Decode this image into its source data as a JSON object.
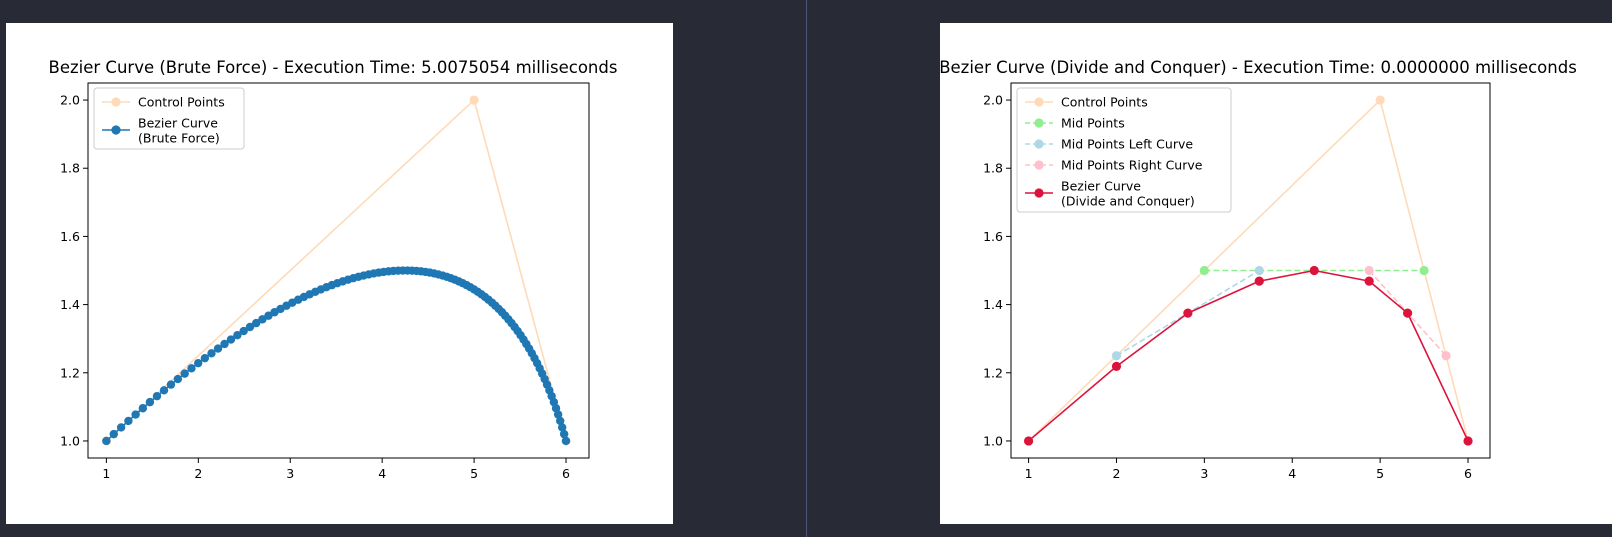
{
  "chart_data": [
    {
      "type": "line",
      "title": "Bezier Curve (Brute Force) - Execution Time: 5.0075054 milliseconds",
      "xlabel": "",
      "ylabel": "",
      "xlim": [
        0.8,
        6.25
      ],
      "ylim": [
        0.95,
        2.05
      ],
      "xticks": [
        "1",
        "2",
        "3",
        "4",
        "5",
        "6"
      ],
      "yticks": [
        "1.0",
        "1.2",
        "1.4",
        "1.6",
        "1.8",
        "2.0"
      ],
      "legend_position": "top-left",
      "series": [
        {
          "name": "Control Points",
          "color": "#ffdab9",
          "marker": "circle",
          "line": "solid",
          "x": [
            1,
            5,
            6
          ],
          "y": [
            1.0,
            2.0,
            1.0
          ]
        },
        {
          "name": "Bezier Curve\n(Brute Force)",
          "color": "#1f77b4",
          "marker": "circle",
          "line": "solid",
          "formula": "quadratic bezier of control points, 100 samples",
          "samples": 100,
          "control_x": [
            1,
            5,
            6
          ],
          "control_y": [
            1.0,
            2.0,
            1.0
          ]
        }
      ]
    },
    {
      "type": "line",
      "title": "Bezier Curve (Divide and Conquer) - Execution Time: 0.0000000 milliseconds",
      "xlabel": "",
      "ylabel": "",
      "xlim": [
        0.8,
        6.25
      ],
      "ylim": [
        0.95,
        2.05
      ],
      "xticks": [
        "1",
        "2",
        "3",
        "4",
        "5",
        "6"
      ],
      "yticks": [
        "1.0",
        "1.2",
        "1.4",
        "1.6",
        "1.8",
        "2.0"
      ],
      "legend_position": "top-left",
      "series": [
        {
          "name": "Control Points",
          "color": "#ffdab9",
          "marker": "circle",
          "line": "solid",
          "x": [
            1,
            5,
            6
          ],
          "y": [
            1.0,
            2.0,
            1.0
          ]
        },
        {
          "name": "Mid Points",
          "color": "#90ee90",
          "marker": "circle",
          "line": "dashed",
          "x": [
            3,
            5.5
          ],
          "y": [
            1.5,
            1.5
          ]
        },
        {
          "name": "Mid Points Left Curve",
          "color": "#add8e6",
          "marker": "circle",
          "line": "dashed",
          "x": [
            2,
            3.625
          ],
          "y": [
            1.25,
            1.5
          ]
        },
        {
          "name": "Mid Points Right Curve",
          "color": "#ffc0cb",
          "marker": "circle",
          "line": "dashed",
          "x": [
            4.875,
            5.75
          ],
          "y": [
            1.5,
            1.25
          ]
        },
        {
          "name": "Bezier Curve\n(Divide and Conquer)",
          "color": "#dc143c",
          "marker": "circle",
          "line": "solid",
          "x": [
            1,
            2,
            2.8125,
            3.625,
            4.25,
            4.875,
            5.3125,
            6
          ],
          "y": [
            1.0,
            1.21875,
            1.375,
            1.46875,
            1.5,
            1.46875,
            1.375,
            1.0
          ]
        }
      ]
    }
  ]
}
